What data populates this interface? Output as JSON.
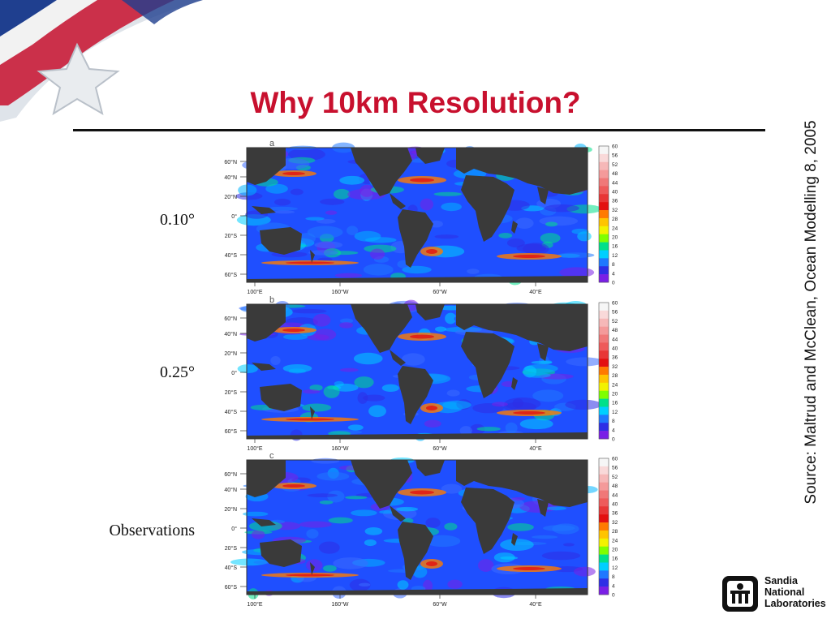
{
  "slide": {
    "title": "Why 10km Resolution?",
    "source": "Source:  Maltrud and McClean, Ocean Modelling 8, 2005"
  },
  "panels": [
    {
      "letter": "a",
      "row_label": "0.10°"
    },
    {
      "letter": "b",
      "row_label": "0.25°"
    },
    {
      "letter": "c",
      "row_label": "Observations"
    }
  ],
  "map_axes": {
    "lat_labels": [
      "60°N",
      "40°N",
      "20°N",
      "0°",
      "20°S",
      "40°S",
      "60°S"
    ],
    "lon_labels": [
      "100°E",
      "160°W",
      "60°W",
      "40°E"
    ]
  },
  "colorbar": {
    "ticks": [
      "60",
      "56",
      "52",
      "48",
      "44",
      "40",
      "36",
      "32",
      "28",
      "24",
      "20",
      "16",
      "12",
      "8",
      "4",
      "0"
    ],
    "colors": [
      "#f6f6f6",
      "#f9d9d9",
      "#f6b8b8",
      "#f49a9a",
      "#f07878",
      "#ee5a5a",
      "#e83636",
      "#e31010",
      "#ff7a00",
      "#ffc400",
      "#f2f200",
      "#7fff00",
      "#00e08a",
      "#00cfff",
      "#1f78ff",
      "#2e2ee6",
      "#7a1fe6"
    ]
  },
  "logo": {
    "line1": "Sandia",
    "line2": "National",
    "line3": "Laboratories"
  }
}
